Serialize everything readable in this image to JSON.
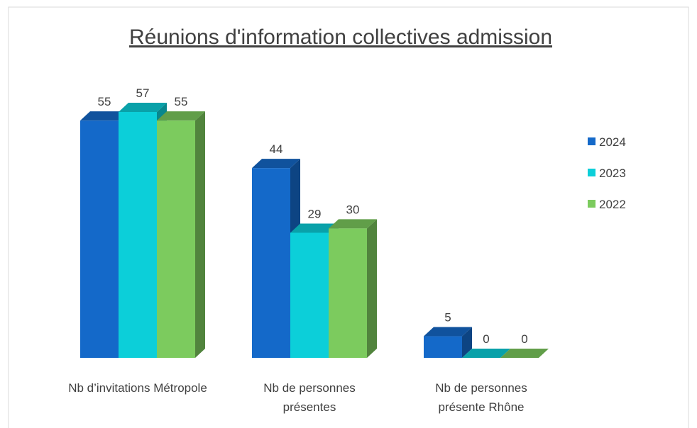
{
  "chart_data": {
    "type": "bar3d",
    "title": "Réunions d'information collectives admission",
    "categories": [
      "Nb d’invitations Métropole",
      "Nb de personnes présentes",
      "Nb de personnes présente Rhône"
    ],
    "series": [
      {
        "name": "2024",
        "color": "#1469c9",
        "values": [
          55,
          44,
          5
        ]
      },
      {
        "name": "2023",
        "color": "#0ccfd9",
        "values": [
          57,
          29,
          0
        ]
      },
      {
        "name": "2022",
        "color": "#7ccb5e",
        "values": [
          55,
          30,
          0
        ]
      }
    ],
    "legend": "right"
  }
}
